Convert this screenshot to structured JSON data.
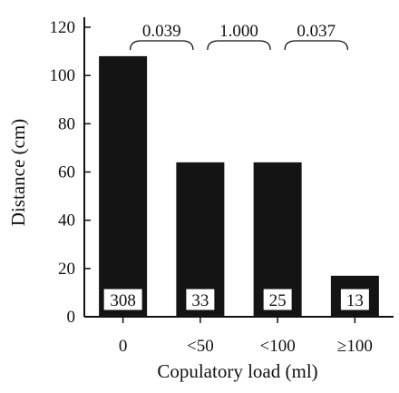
{
  "chart_data": {
    "type": "bar",
    "title": "",
    "xlabel": "Copulatory load (ml)",
    "ylabel": "Distance (cm)",
    "ylim": [
      0,
      120
    ],
    "yticks": [
      0,
      20,
      40,
      60,
      80,
      100,
      120
    ],
    "categories": [
      "0",
      "<50",
      "<100",
      "≥100"
    ],
    "values": [
      108,
      64,
      64,
      17
    ],
    "sample_sizes": [
      "308",
      "33",
      "25",
      "13"
    ],
    "comparisons": [
      {
        "from": 0,
        "to": 1,
        "p": "0.039"
      },
      {
        "from": 1,
        "to": 2,
        "p": "1.000"
      },
      {
        "from": 2,
        "to": 3,
        "p": "0.037"
      }
    ],
    "bar_color": "#141414",
    "grid": false,
    "legend": "none"
  }
}
